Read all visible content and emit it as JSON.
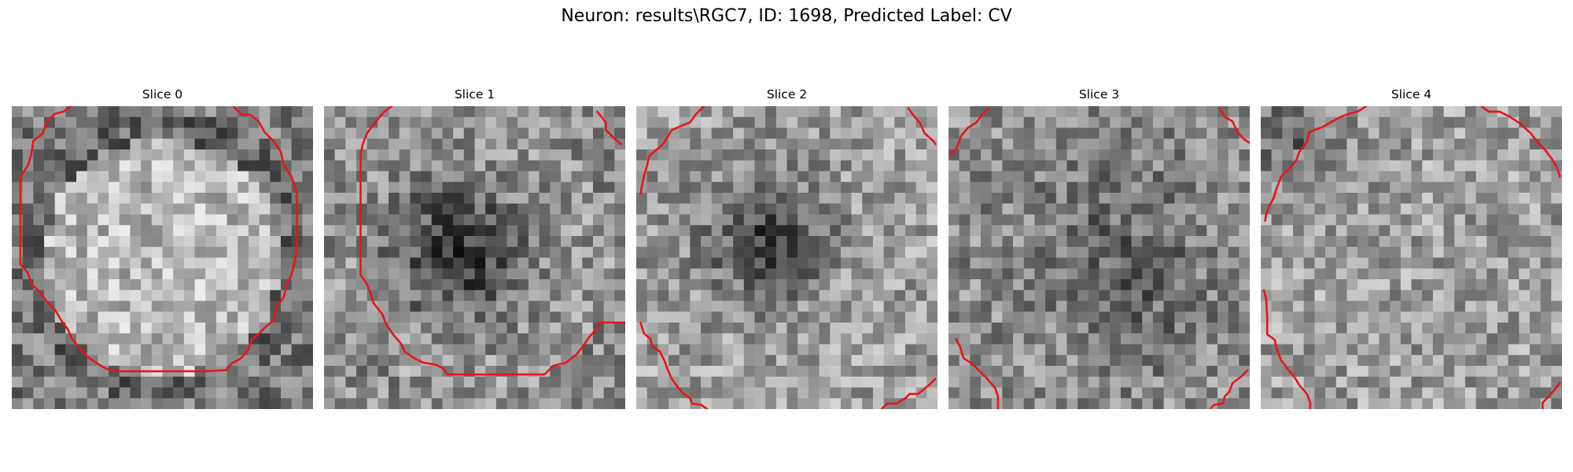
{
  "figure": {
    "title": "Neuron: results\\RGC7, ID: 1698, Predicted Label: CV"
  },
  "slices": [
    {
      "title": "Slice 0",
      "overlay": "contour-ring"
    },
    {
      "title": "Slice 1",
      "overlay": "contour-ring"
    },
    {
      "title": "Slice 2",
      "overlay": "contour-corners"
    },
    {
      "title": "Slice 3",
      "overlay": "contour-corners"
    },
    {
      "title": "Slice 4",
      "overlay": "contour-corners"
    }
  ],
  "style": {
    "contour_color": "#e8141c",
    "colormap": "grayscale"
  }
}
